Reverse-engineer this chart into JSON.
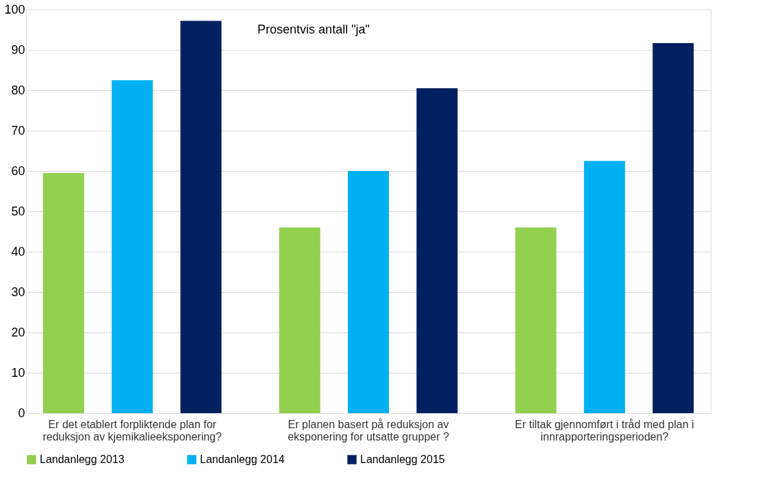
{
  "chart_data": {
    "type": "bar",
    "title": "Prosentvis antall \"ja\"",
    "categories": [
      "Er det etablert forpliktende plan for\nreduksjon av kjemikalieeksponering?",
      "Er planen basert på reduksjon av\neksponering for utsatte grupper ?",
      "Er tiltak gjennomført i tråd med plan i\ninnrapporteringsperioden?"
    ],
    "series": [
      {
        "name": "Landanlegg 2013",
        "color": "#92d050",
        "values": [
          59.5,
          46,
          46
        ]
      },
      {
        "name": "Landanlegg 2014",
        "color": "#00b0f0",
        "values": [
          82.5,
          60,
          62.5
        ]
      },
      {
        "name": "Landanlegg 2015",
        "color": "#002060",
        "values": [
          97.2,
          80.5,
          91.7
        ]
      }
    ],
    "ylim": [
      0,
      100
    ],
    "yticks": [
      0,
      10,
      20,
      30,
      40,
      50,
      60,
      70,
      80,
      90,
      100
    ],
    "grid": "y",
    "legend": "bottom"
  }
}
